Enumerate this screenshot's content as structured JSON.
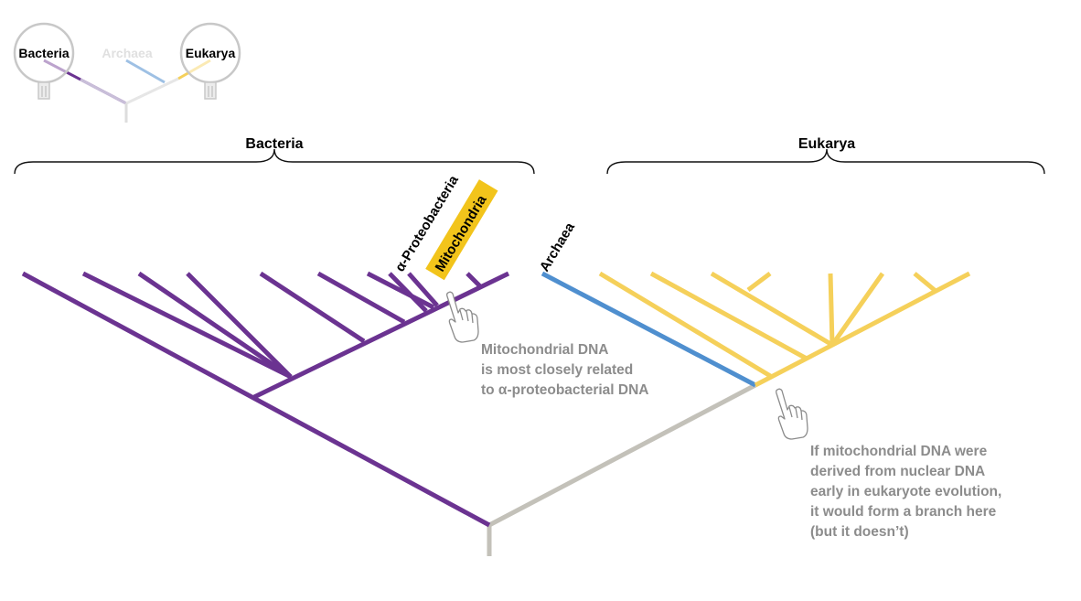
{
  "inset": {
    "labels": {
      "bacteria": "Bacteria",
      "archaea": "Archaea",
      "eukarya": "Eukarya"
    }
  },
  "groups": {
    "bacteria": "Bacteria",
    "eukarya": "Eukarya"
  },
  "tips": {
    "alpha_proteobacteria": "α-Proteobacteria",
    "mitochondria": "Mitochondria",
    "archaea": "Archaea"
  },
  "callouts": {
    "mito": [
      "Mitochondrial DNA",
      "is most closely related",
      "to α-proteobacterial DNA"
    ],
    "nuclear": [
      "If mitochondrial DNA were",
      "derived from nuclear DNA",
      "early in eukaryote evolution,",
      "it would form a branch here",
      "(but it doesn’t)"
    ]
  },
  "colors": {
    "bacteria": "#6b3391",
    "archaea": "#4f8fcf",
    "eukarya": "#f5d05a",
    "root": "#c3c1b9",
    "highlight": "#f2c41b",
    "callout_text": "#8c8c8c"
  }
}
